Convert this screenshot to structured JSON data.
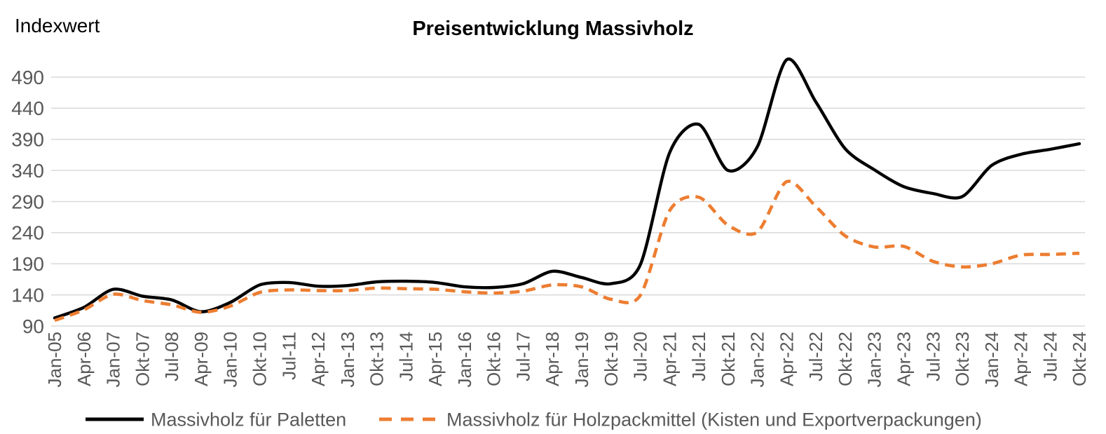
{
  "header": {
    "title": "Preisentwicklung Massivholz",
    "y_axis_label": "Indexwert"
  },
  "colors": {
    "axis_text": "#595959",
    "gridline": "#d9d9d9",
    "background": "#ffffff",
    "series_paletten": "#000000",
    "series_holzpackmittel": "#ed7d31"
  },
  "chart_data": {
    "type": "line",
    "title": "Preisentwicklung Massivholz",
    "ylabel": "Indexwert",
    "xlabel": "",
    "grid": "horizontal",
    "legend_position": "bottom",
    "ylim": [
      90,
      530
    ],
    "y_ticks": [
      90,
      140,
      190,
      240,
      290,
      340,
      390,
      440,
      490
    ],
    "categories": [
      "Jan-05",
      "Apr-06",
      "Jan-07",
      "Okt-07",
      "Jul-08",
      "Apr-09",
      "Jan-10",
      "Okt-10",
      "Jul-11",
      "Apr-12",
      "Jan-13",
      "Okt-13",
      "Jul-14",
      "Apr-15",
      "Jan-16",
      "Okt-16",
      "Jul-17",
      "Apr-18",
      "Jan-19",
      "Okt-19",
      "Jul-20",
      "Apr-21",
      "Jul-21",
      "Okt-21",
      "Jan-22",
      "Apr-22",
      "Jul-22",
      "Okt-22",
      "Jan-23",
      "Apr-23",
      "Jul-23",
      "Okt-23",
      "Jan-24",
      "Apr-24",
      "Jul-24",
      "Okt-24"
    ],
    "series": [
      {
        "name": "Massivholz für Paletten",
        "style": "solid",
        "color": "#000000",
        "values": [
          103,
          120,
          149,
          138,
          132,
          113,
          128,
          156,
          160,
          154,
          155,
          161,
          162,
          160,
          153,
          152,
          158,
          178,
          168,
          158,
          188,
          368,
          414,
          340,
          378,
          518,
          450,
          375,
          341,
          314,
          303,
          298,
          348,
          366,
          374,
          383
        ]
      },
      {
        "name": "Massivholz für Holzpackmittel (Kisten und Exportverpackungen)",
        "style": "dashed",
        "color": "#ed7d31",
        "values": [
          99,
          116,
          141,
          131,
          124,
          112,
          122,
          144,
          148,
          147,
          147,
          151,
          150,
          149,
          145,
          143,
          146,
          156,
          153,
          133,
          139,
          275,
          297,
          252,
          241,
          322,
          282,
          235,
          217,
          218,
          194,
          185,
          190,
          204,
          205,
          207
        ]
      }
    ]
  }
}
